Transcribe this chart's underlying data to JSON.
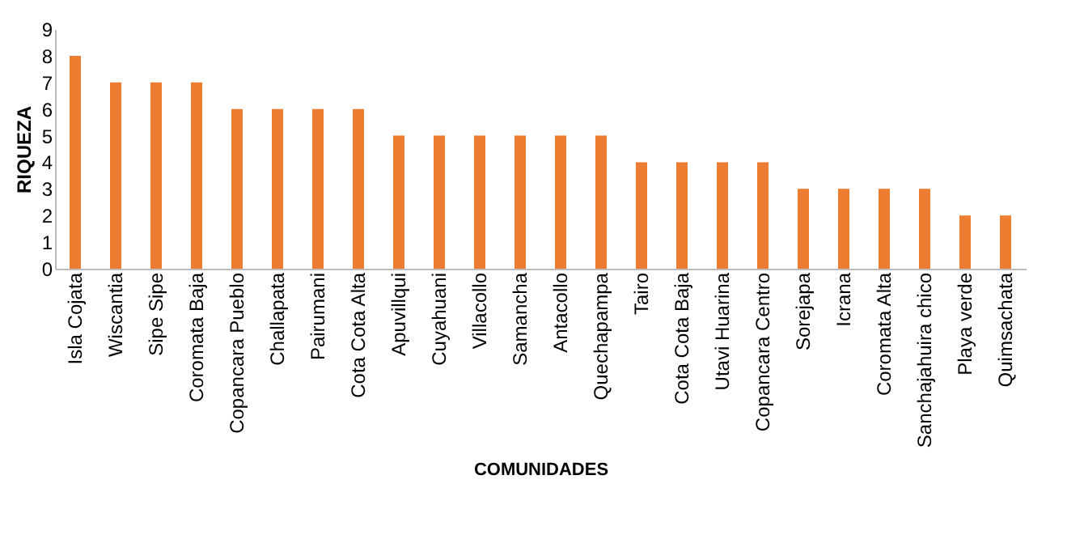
{
  "chart_data": {
    "type": "bar",
    "xlabel": "COMUNIDADES",
    "ylabel": "RIQUEZA",
    "categories": [
      "Isla Cojata",
      "Wiscantia",
      "Sipe Sipe",
      "Coromata Baja",
      "Copancara Pueblo",
      "Challapata",
      "Pairumani",
      "Cota Cota Alta",
      "Apuvillqui",
      "Cuyahuani",
      "Villacollo",
      "Samancha",
      "Antacollo",
      "Quechapampa",
      "Tairo",
      "Cota Cota Baja",
      "Utavi Huarina",
      "Copancara Centro",
      "Sorejapa",
      "Icrana",
      "Coromata Alta",
      "Sanchajahuira chico",
      "Playa verde",
      "Quimsachata"
    ],
    "values": [
      8,
      7,
      7,
      7,
      6,
      6,
      6,
      6,
      5,
      5,
      5,
      5,
      5,
      5,
      4,
      4,
      4,
      4,
      3,
      3,
      3,
      3,
      2,
      2
    ],
    "color": "#ed7d31",
    "ylim": [
      0,
      9
    ],
    "yticks": [
      0,
      1,
      2,
      3,
      4,
      5,
      6,
      7,
      8,
      9
    ],
    "grid": false
  }
}
